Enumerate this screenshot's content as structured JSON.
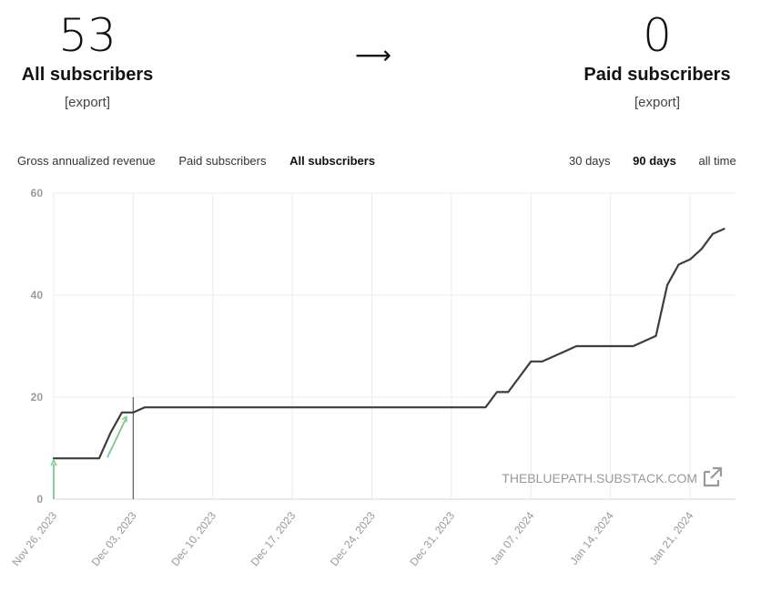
{
  "left_stat": {
    "value": "53",
    "label": "All subscribers",
    "export": "[export]"
  },
  "arrow": "⟶",
  "right_stat": {
    "value": "0",
    "label": "Paid subscribers",
    "export": "[export]"
  },
  "metric_tabs": [
    "Gross annualized revenue",
    "Paid subscribers",
    "All subscribers"
  ],
  "metric_tabs_active": 2,
  "range_tabs": [
    "30 days",
    "90 days",
    "all time"
  ],
  "range_tabs_active": 1,
  "watermark": "THEBLUEPATH.SUBSTACK.COM",
  "icons": {
    "external": "external-link-icon"
  },
  "colors": {
    "line": "#3d3d3d",
    "grid": "#ececec",
    "axis_text": "#9a9a9a",
    "green_marker": "#7ac98f"
  },
  "chart_data": {
    "type": "line",
    "xlabel": "",
    "ylabel": "",
    "ylim": [
      0,
      60
    ],
    "yticks": [
      0,
      20,
      40,
      60
    ],
    "xlim": [
      "2023-11-26",
      "2024-01-25"
    ],
    "xticks": [
      "2023-11-26",
      "2023-12-03",
      "2023-12-10",
      "2023-12-17",
      "2023-12-24",
      "2023-12-31",
      "2024-01-07",
      "2024-01-14",
      "2024-01-21"
    ],
    "xtick_labels": [
      "Nov 26, 2023",
      "Dec 03, 2023",
      "Dec 10, 2023",
      "Dec 17, 2023",
      "Dec 24, 2023",
      "Dec 31, 2023",
      "Jan 07, 2024",
      "Jan 14, 2024",
      "Jan 21, 2024"
    ],
    "grid": true,
    "series": [
      {
        "points": [
          [
            "2023-11-26",
            8
          ],
          [
            "2023-11-29",
            8
          ],
          [
            "2023-11-30",
            8
          ],
          [
            "2023-12-01",
            13
          ],
          [
            "2023-12-02",
            17
          ],
          [
            "2023-12-03",
            17
          ],
          [
            "2023-12-04",
            18
          ],
          [
            "2023-12-10",
            18
          ],
          [
            "2023-12-20",
            18
          ],
          [
            "2023-12-31",
            18
          ],
          [
            "2024-01-03",
            18
          ],
          [
            "2024-01-04",
            21
          ],
          [
            "2024-01-05",
            21
          ],
          [
            "2024-01-07",
            27
          ],
          [
            "2024-01-08",
            27
          ],
          [
            "2024-01-10",
            29
          ],
          [
            "2024-01-11",
            30
          ],
          [
            "2024-01-15",
            30
          ],
          [
            "2024-01-16",
            30
          ],
          [
            "2024-01-18",
            32
          ],
          [
            "2024-01-19",
            42
          ],
          [
            "2024-01-20",
            46
          ],
          [
            "2024-01-21",
            47
          ],
          [
            "2024-01-22",
            49
          ],
          [
            "2024-01-23",
            52
          ],
          [
            "2024-01-24",
            53
          ]
        ]
      }
    ]
  }
}
